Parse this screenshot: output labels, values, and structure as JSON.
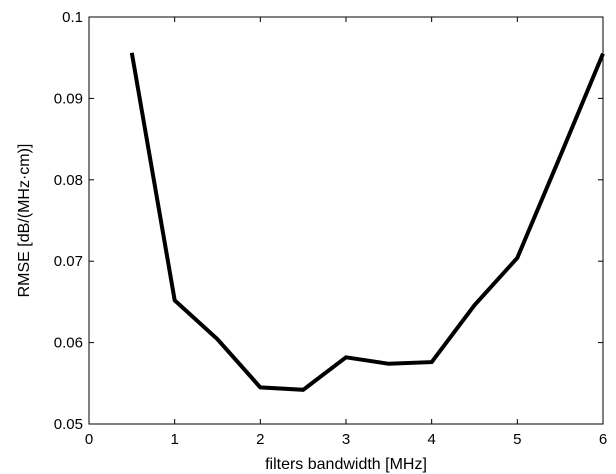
{
  "chart_data": {
    "type": "line",
    "title": "",
    "xlabel": "filters bandwidth [MHz]",
    "ylabel": "RMSE [dB/(MHz·cm)]",
    "xlim": [
      0,
      6
    ],
    "ylim": [
      0.05,
      0.1
    ],
    "x_ticks": [
      0,
      1,
      2,
      3,
      4,
      5,
      6
    ],
    "x_tick_labels": [
      "0",
      "1",
      "2",
      "3",
      "4",
      "5",
      "6"
    ],
    "y_ticks": [
      0.05,
      0.06,
      0.07,
      0.08,
      0.09,
      0.1
    ],
    "y_tick_labels": [
      "0.05",
      "0.06",
      "0.07",
      "0.08",
      "0.09",
      "0.1"
    ],
    "grid": false,
    "legend": "none",
    "line_color": "#000000",
    "series": [
      {
        "x": [
          0.5,
          1.0,
          1.5,
          2.0,
          2.5,
          3.0,
          3.5,
          4.0,
          4.5,
          5.0,
          5.5,
          6.0
        ],
        "values": [
          0.0956,
          0.0652,
          0.0604,
          0.0545,
          0.0542,
          0.0582,
          0.0574,
          0.0576,
          0.0646,
          0.0704,
          0.0829,
          0.0955
        ]
      }
    ]
  }
}
